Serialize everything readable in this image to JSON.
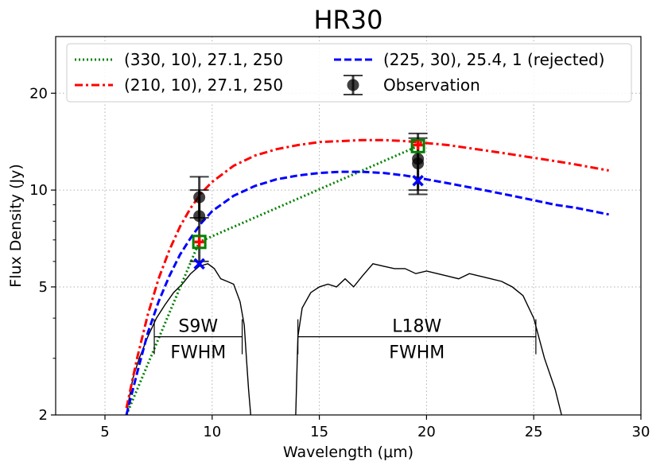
{
  "chart_data": {
    "type": "line",
    "title": "HR30",
    "xlabel": "Wavelength (μm)",
    "ylabel": "Flux Density (Jy)",
    "xlim": [
      2.7,
      30
    ],
    "ylim": [
      2,
      30
    ],
    "yscale": "log",
    "grid": true,
    "x_ticks": [
      5,
      10,
      15,
      20,
      25,
      30
    ],
    "x_tick_labels": [
      "5",
      "10",
      "15",
      "20",
      "25",
      "30"
    ],
    "y_ticks": [
      2,
      5,
      10,
      20
    ],
    "y_tick_labels": [
      "2",
      "5",
      "10",
      "20"
    ],
    "y_minor_ticks": [
      3,
      4,
      6,
      7,
      8,
      9
    ],
    "legend_position": "top",
    "series": [
      {
        "name": "(330, 10), 27.1, 250",
        "style": "dotted",
        "color": "#008000",
        "x": [
          6.0,
          9.4,
          19.6
        ],
        "y": [
          2.0,
          6.9,
          13.7
        ]
      },
      {
        "name": "(210, 10), 27.1, 250",
        "style": "dashdot",
        "color": "#ff0000",
        "x": [
          6.0,
          6.5,
          7.0,
          7.5,
          8.0,
          8.5,
          9.0,
          9.5,
          10.0,
          11.0,
          12.0,
          13.0,
          14.0,
          15.0,
          16.0,
          17.0,
          18.0,
          19.0,
          20.0,
          21.0,
          22.0,
          23.0,
          24.0,
          25.0,
          26.0,
          27.0,
          28.5
        ],
        "y": [
          2.1,
          3.0,
          4.1,
          5.3,
          6.5,
          7.7,
          8.8,
          9.8,
          10.6,
          11.9,
          12.8,
          13.4,
          13.8,
          14.1,
          14.2,
          14.3,
          14.3,
          14.2,
          14.0,
          13.8,
          13.5,
          13.2,
          12.9,
          12.6,
          12.3,
          12.0,
          11.5
        ]
      },
      {
        "name": "(225, 30), 25.4, 1 (rejected)",
        "style": "dashed",
        "color": "#0000ff",
        "x": [
          6.0,
          6.5,
          7.0,
          7.5,
          8.0,
          8.5,
          9.0,
          9.5,
          10.0,
          11.0,
          12.0,
          13.0,
          14.0,
          15.0,
          16.0,
          17.0,
          18.0,
          19.0,
          20.0,
          21.0,
          22.0,
          23.0,
          24.0,
          25.0,
          26.0,
          27.0,
          28.5
        ],
        "y": [
          2.0,
          2.7,
          3.6,
          4.5,
          5.4,
          6.3,
          7.1,
          7.9,
          8.6,
          9.6,
          10.3,
          10.8,
          11.1,
          11.3,
          11.4,
          11.4,
          11.3,
          11.1,
          10.8,
          10.5,
          10.2,
          9.9,
          9.6,
          9.3,
          9.0,
          8.8,
          8.4
        ]
      }
    ],
    "model_points": [
      {
        "series": "(330, 10), 27.1, 250",
        "marker": "open-square",
        "color": "#008000",
        "x": [
          9.4,
          19.6
        ],
        "y": [
          6.9,
          13.7
        ]
      },
      {
        "series": "(210, 10), 27.1, 250",
        "marker": "plus",
        "color": "#ff0000",
        "x": [
          9.4,
          19.6
        ],
        "y": [
          6.9,
          13.8
        ]
      },
      {
        "series": "(225, 30), 25.4, 1 (rejected)",
        "marker": "x",
        "color": "#0000ff",
        "x": [
          9.4,
          19.6
        ],
        "y": [
          5.9,
          10.7
        ]
      }
    ],
    "observations": {
      "name": "Observation",
      "color": "#000000",
      "points": [
        {
          "x": 9.4,
          "y": 9.5,
          "ylow": 8.2,
          "yhigh": 11.0
        },
        {
          "x": 9.4,
          "y": 8.3,
          "ylow": 6.0,
          "yhigh": 10.0
        },
        {
          "x": 19.6,
          "y": 12.5,
          "ylow": 10.0,
          "yhigh": 15.0
        },
        {
          "x": 19.6,
          "y": 12.1,
          "ylow": 9.7,
          "yhigh": 14.5
        }
      ]
    },
    "filters": [
      {
        "name": "S9W",
        "fwhm_label": "FWHM",
        "fwhm_range": [
          7.3,
          11.4
        ],
        "response_x": [
          6.0,
          6.1,
          6.3,
          6.6,
          7.0,
          7.4,
          7.8,
          8.2,
          8.6,
          9.0,
          9.4,
          9.8,
          10.1,
          10.4,
          10.7,
          11.0,
          11.3,
          11.5,
          11.6,
          11.7,
          11.8
        ],
        "response_y": [
          2.0,
          2.2,
          2.6,
          3.0,
          3.5,
          4.0,
          4.4,
          4.8,
          5.1,
          5.5,
          5.8,
          5.9,
          5.7,
          5.3,
          5.2,
          5.1,
          4.5,
          3.8,
          3.0,
          2.4,
          2.0
        ]
      },
      {
        "name": "L18W",
        "fwhm_label": "FWHM",
        "fwhm_range": [
          14.0,
          25.1
        ],
        "response_x": [
          13.9,
          14.0,
          14.2,
          14.6,
          15.0,
          15.4,
          15.8,
          16.2,
          16.6,
          17.0,
          17.5,
          18.0,
          18.5,
          19.0,
          19.5,
          20.0,
          20.5,
          21.0,
          21.5,
          22.0,
          22.5,
          23.0,
          23.5,
          24.0,
          24.5,
          25.0,
          25.5,
          26.0,
          26.3
        ],
        "response_y": [
          2.0,
          3.5,
          4.3,
          4.8,
          5.0,
          5.1,
          5.0,
          5.3,
          5.0,
          5.4,
          5.9,
          5.8,
          5.7,
          5.7,
          5.5,
          5.6,
          5.5,
          5.4,
          5.3,
          5.5,
          5.4,
          5.3,
          5.2,
          5.0,
          4.7,
          4.0,
          3.0,
          2.4,
          2.0
        ]
      }
    ]
  }
}
